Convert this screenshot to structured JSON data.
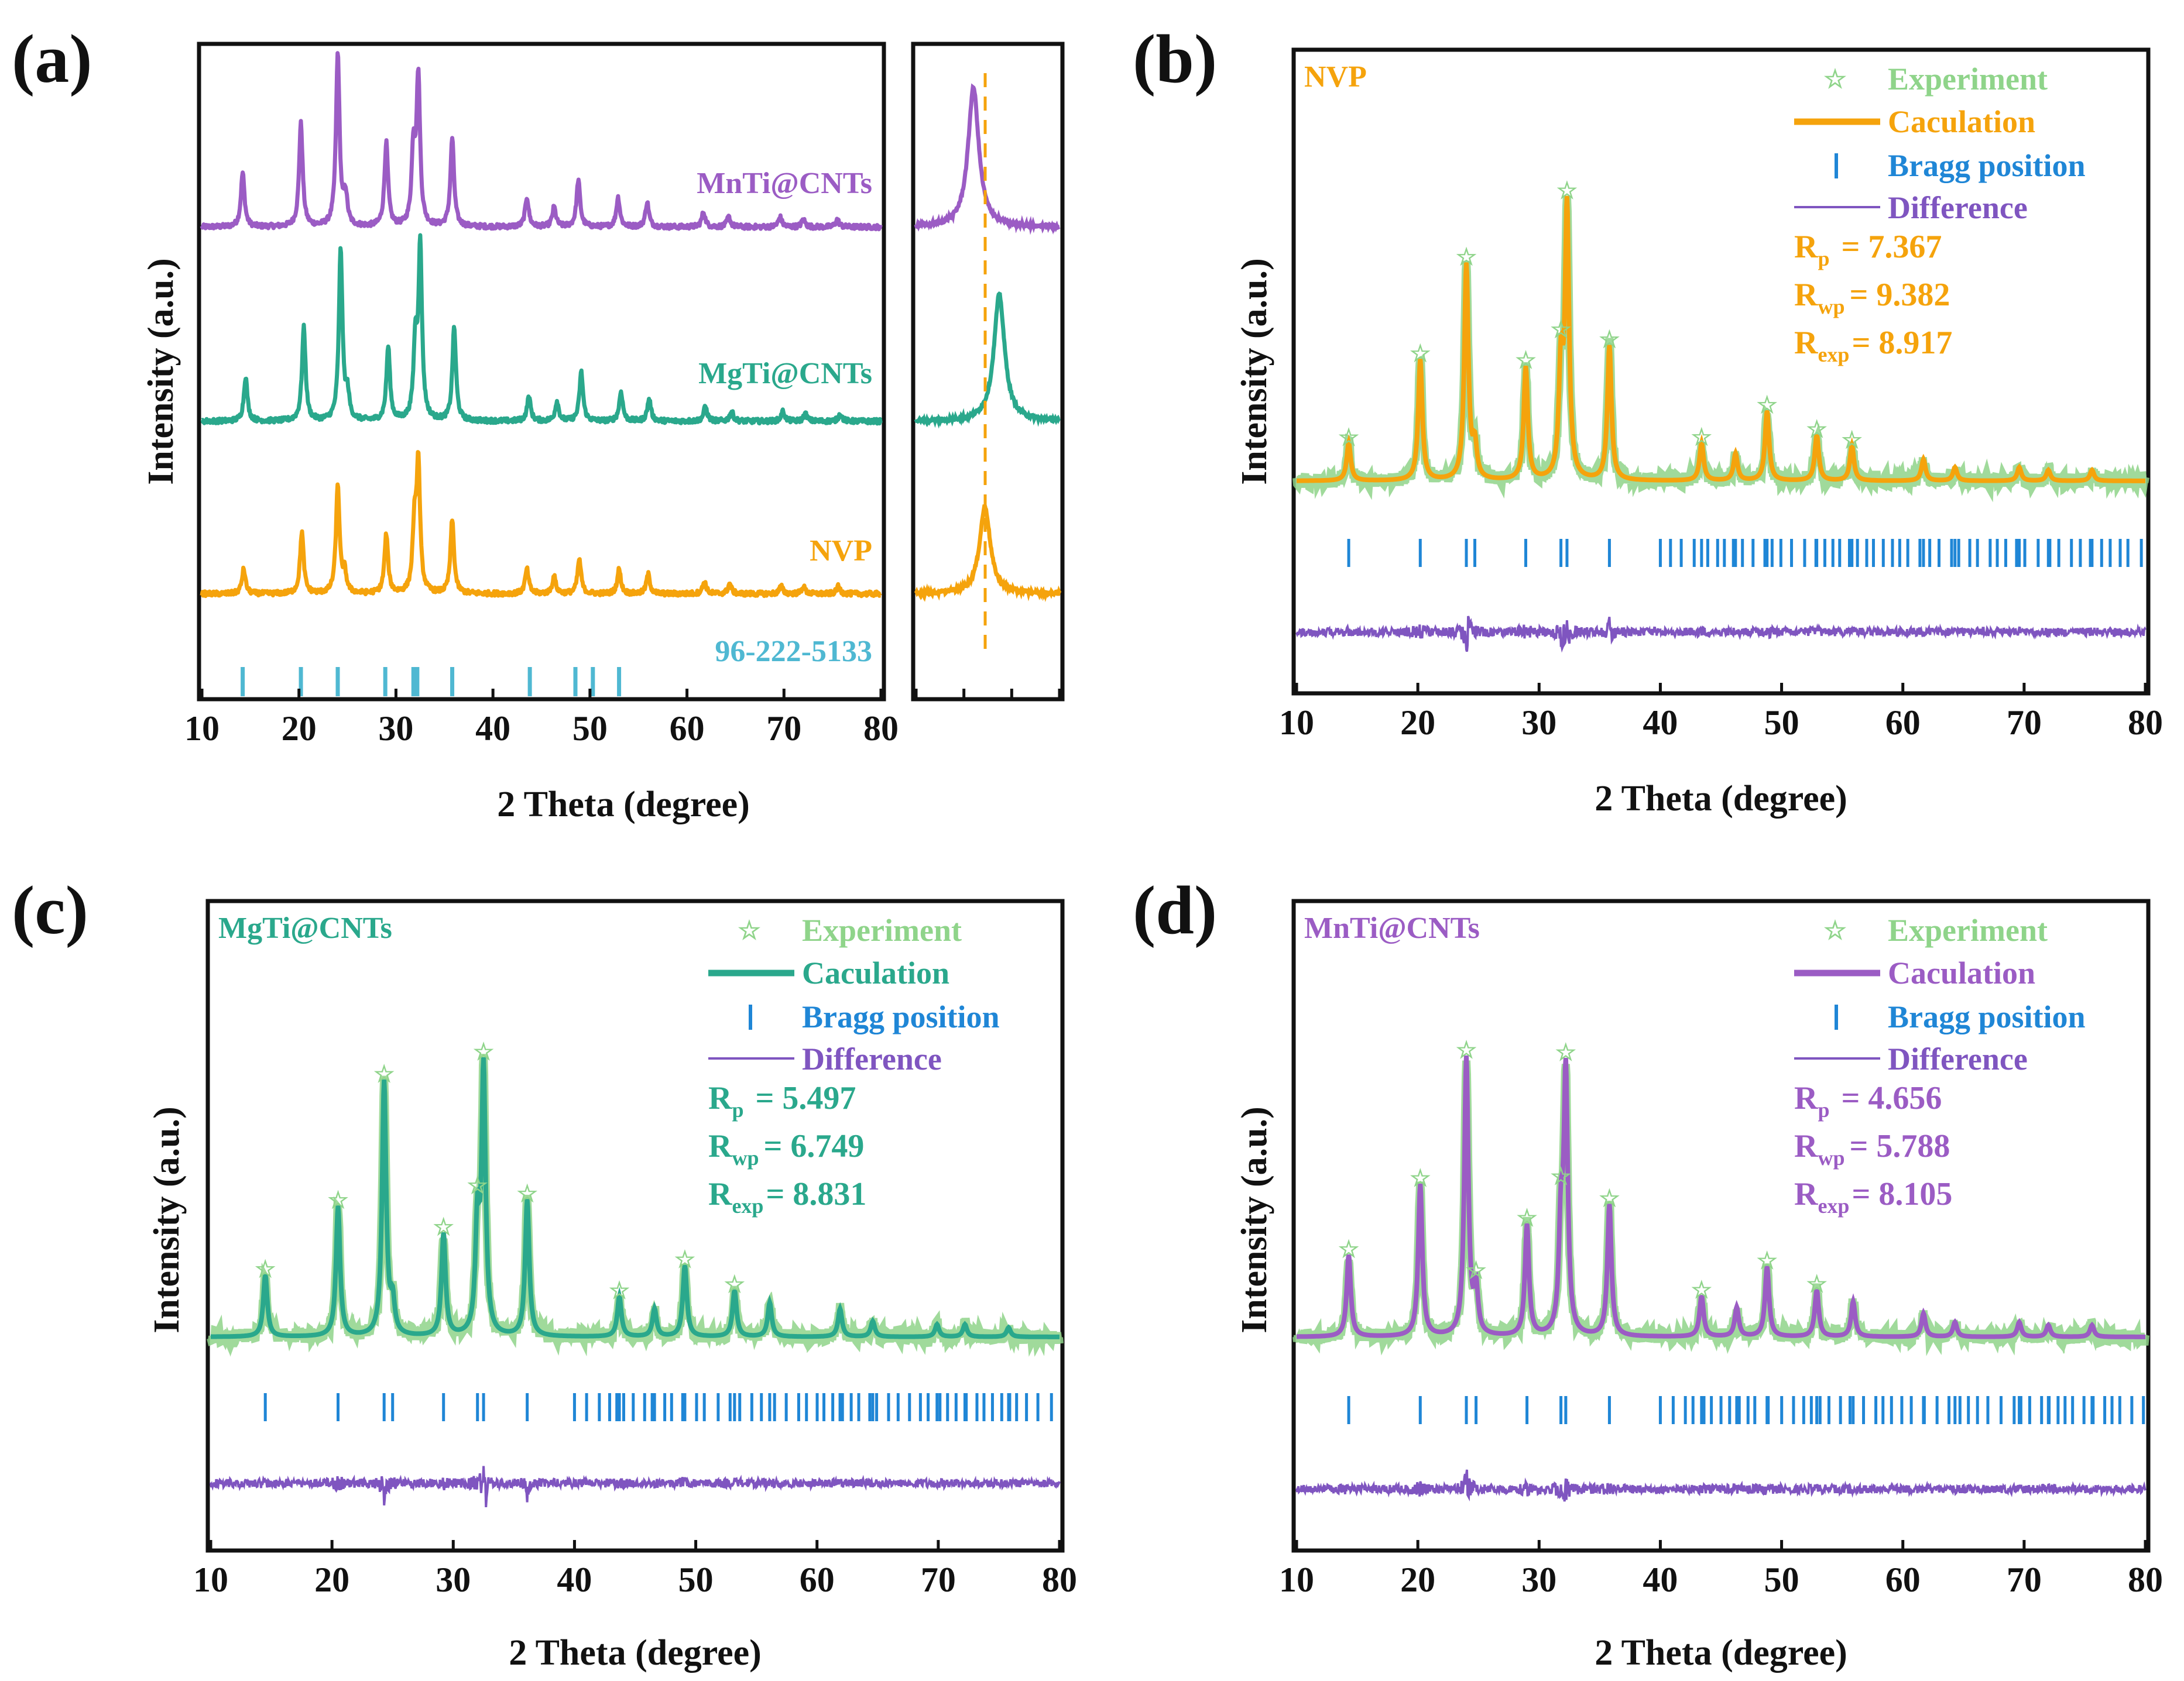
{
  "colors": {
    "nvp": "#f5a30c",
    "mgti": "#2aa88c",
    "mnti": "#9b5cc4",
    "experiment": "#8fd48a",
    "bragg": "#1f86d6",
    "difference": "#7f55c0",
    "reference": "#4fb8d2",
    "axis": "#111111"
  },
  "chart_data": [
    {
      "id": "a",
      "type": "line",
      "panel_label": "(a)",
      "xlabel": "2 Theta (degree)",
      "ylabel": "Intensity (a.u.)",
      "xlim": [
        10,
        80
      ],
      "xticks": [
        "10",
        "20",
        "30",
        "40",
        "50",
        "60",
        "70",
        "80"
      ],
      "series": [
        {
          "name": "MnTi@CNTs",
          "color_key": "mnti",
          "peaks": [
            [
              14.2,
              0.22
            ],
            [
              20.2,
              0.42
            ],
            [
              24.0,
              0.7
            ],
            [
              24.8,
              0.12
            ],
            [
              29.0,
              0.34
            ],
            [
              31.8,
              0.3
            ],
            [
              32.3,
              0.6
            ],
            [
              35.8,
              0.36
            ],
            [
              43.5,
              0.12
            ],
            [
              46.3,
              0.08
            ],
            [
              48.8,
              0.19
            ],
            [
              52.9,
              0.12
            ],
            [
              55.9,
              0.1
            ],
            [
              61.7,
              0.06
            ],
            [
              64.3,
              0.04
            ],
            [
              69.6,
              0.04
            ],
            [
              72.0,
              0.03
            ],
            [
              75.5,
              0.03
            ]
          ]
        },
        {
          "name": "MgTi@CNTs",
          "color_key": "mgti",
          "peaks": [
            [
              14.5,
              0.18
            ],
            [
              20.5,
              0.38
            ],
            [
              24.3,
              0.7
            ],
            [
              25.0,
              0.1
            ],
            [
              29.2,
              0.3
            ],
            [
              32.0,
              0.3
            ],
            [
              32.5,
              0.7
            ],
            [
              36.0,
              0.38
            ],
            [
              43.7,
              0.1
            ],
            [
              46.6,
              0.08
            ],
            [
              49.1,
              0.2
            ],
            [
              53.2,
              0.12
            ],
            [
              56.1,
              0.09
            ],
            [
              61.9,
              0.06
            ],
            [
              64.6,
              0.04
            ],
            [
              69.9,
              0.04
            ],
            [
              72.2,
              0.03
            ],
            [
              75.8,
              0.03
            ]
          ]
        },
        {
          "name": "NVP",
          "color_key": "nvp",
          "peaks": [
            [
              14.3,
              0.1
            ],
            [
              20.3,
              0.25
            ],
            [
              24.0,
              0.44
            ],
            [
              24.7,
              0.08
            ],
            [
              29.0,
              0.24
            ],
            [
              31.9,
              0.25
            ],
            [
              32.3,
              0.52
            ],
            [
              35.8,
              0.3
            ],
            [
              43.5,
              0.1
            ],
            [
              46.3,
              0.07
            ],
            [
              48.9,
              0.14
            ],
            [
              53.0,
              0.1
            ],
            [
              56.0,
              0.08
            ],
            [
              61.8,
              0.05
            ],
            [
              64.4,
              0.04
            ],
            [
              69.7,
              0.03
            ],
            [
              72.0,
              0.03
            ],
            [
              75.6,
              0.03
            ]
          ]
        }
      ],
      "reference": {
        "name": "96-222-5133",
        "positions": [
          14.2,
          20.2,
          24.0,
          28.9,
          31.8,
          32.2,
          35.8,
          43.8,
          48.5,
          50.3,
          53.0
        ]
      },
      "zoom": {
        "peaks": {
          "MnTi@CNTs": [
            0.4,
            0.7
          ],
          "MgTi@CNTs": [
            0.58,
            0.72
          ],
          "NVP": [
            0.48,
            0.62
          ]
        },
        "reference_line": 0.48
      }
    },
    {
      "id": "b",
      "type": "line",
      "panel_label": "(b)",
      "sample": "NVP",
      "color_key": "nvp",
      "xlabel": "2 Theta (degree)",
      "ylabel": "Intensity (a.u.)",
      "xlim": [
        10,
        80
      ],
      "xticks": [
        "10",
        "20",
        "30",
        "40",
        "50",
        "60",
        "70",
        "80"
      ],
      "legend": [
        "Experiment",
        "Caculation",
        "Bragg position",
        "Difference"
      ],
      "stats": [
        {
          "sym": "R",
          "sub": "p",
          "val": "= 7.367"
        },
        {
          "sym": "R",
          "sub": "wp",
          "val": "= 9.382"
        },
        {
          "sym": "R",
          "sub": "exp",
          "val": "= 8.917"
        }
      ],
      "peaks": [
        [
          14.3,
          0.14
        ],
        [
          20.2,
          0.45
        ],
        [
          24.0,
          0.8
        ],
        [
          24.7,
          0.12
        ],
        [
          28.9,
          0.42
        ],
        [
          31.8,
          0.4
        ],
        [
          32.3,
          1.0
        ],
        [
          35.8,
          0.5
        ],
        [
          43.4,
          0.14
        ],
        [
          46.2,
          0.1
        ],
        [
          48.8,
          0.26
        ],
        [
          52.9,
          0.17
        ],
        [
          55.8,
          0.13
        ],
        [
          61.7,
          0.08
        ],
        [
          64.3,
          0.05
        ],
        [
          69.6,
          0.05
        ],
        [
          72.0,
          0.04
        ],
        [
          75.6,
          0.04
        ]
      ],
      "diff_spikes": [
        [
          24.0,
          -0.09
        ],
        [
          24.2,
          0.06
        ],
        [
          31.9,
          -0.03
        ],
        [
          35.8,
          0.06
        ],
        [
          36.0,
          -0.04
        ]
      ]
    },
    {
      "id": "c",
      "type": "line",
      "panel_label": "(c)",
      "sample": "MgTi@CNTs",
      "color_key": "mgti",
      "xlabel": "2 Theta (degree)",
      "ylabel": "Intensity (a.u.)",
      "xlim": [
        10,
        80
      ],
      "xticks": [
        "10",
        "20",
        "30",
        "40",
        "50",
        "60",
        "70",
        "80"
      ],
      "legend": [
        "Experiment",
        "Caculation",
        "Bragg position",
        "Difference"
      ],
      "stats": [
        {
          "sym": "R",
          "sub": "p",
          "val": "= 5.497"
        },
        {
          "sym": "R",
          "sub": "wp",
          "val": "= 6.749"
        },
        {
          "sym": "R",
          "sub": "exp",
          "val": "= 8.831"
        }
      ],
      "peaks": [
        [
          14.5,
          0.2
        ],
        [
          20.5,
          0.42
        ],
        [
          24.3,
          0.82
        ],
        [
          25.0,
          0.1
        ],
        [
          29.2,
          0.33
        ],
        [
          32.0,
          0.35
        ],
        [
          32.5,
          0.85
        ],
        [
          36.1,
          0.44
        ],
        [
          43.7,
          0.13
        ],
        [
          46.6,
          0.09
        ],
        [
          49.1,
          0.23
        ],
        [
          53.2,
          0.15
        ],
        [
          56.1,
          0.11
        ],
        [
          61.9,
          0.09
        ],
        [
          64.6,
          0.05
        ],
        [
          69.9,
          0.04
        ],
        [
          72.2,
          0.04
        ],
        [
          75.8,
          0.03
        ]
      ],
      "diff_spikes": [
        [
          24.3,
          -0.04
        ],
        [
          32.5,
          0.05
        ],
        [
          32.7,
          -0.06
        ],
        [
          36.1,
          -0.04
        ],
        [
          49.1,
          0.03
        ]
      ]
    },
    {
      "id": "d",
      "type": "line",
      "panel_label": "(d)",
      "sample": "MnTi@CNTs",
      "color_key": "mnti",
      "xlabel": "2 Theta (degree)",
      "ylabel": "Intensity (a.u.)",
      "xlim": [
        10,
        80
      ],
      "xticks": [
        "10",
        "20",
        "30",
        "40",
        "50",
        "60",
        "70",
        "80"
      ],
      "legend": [
        "Experiment",
        "Caculation",
        "Bragg position",
        "Difference"
      ],
      "stats": [
        {
          "sym": "R",
          "sub": "p",
          "val": "= 4.656"
        },
        {
          "sym": "R",
          "sub": "wp",
          "val": "= 5.788"
        },
        {
          "sym": "R",
          "sub": "exp",
          "val": "= 8.105"
        }
      ],
      "peaks": [
        [
          14.3,
          0.28
        ],
        [
          20.2,
          0.52
        ],
        [
          24.0,
          0.95
        ],
        [
          24.8,
          0.15
        ],
        [
          29.0,
          0.38
        ],
        [
          31.8,
          0.35
        ],
        [
          32.2,
          0.88
        ],
        [
          35.8,
          0.45
        ],
        [
          43.4,
          0.14
        ],
        [
          46.3,
          0.1
        ],
        [
          48.8,
          0.24
        ],
        [
          52.9,
          0.16
        ],
        [
          55.9,
          0.12
        ],
        [
          61.7,
          0.08
        ],
        [
          64.3,
          0.05
        ],
        [
          69.6,
          0.05
        ],
        [
          72.0,
          0.04
        ],
        [
          75.6,
          0.04
        ]
      ],
      "diff_spikes": [
        [
          24.0,
          0.04
        ],
        [
          32.0,
          -0.03
        ]
      ]
    }
  ]
}
